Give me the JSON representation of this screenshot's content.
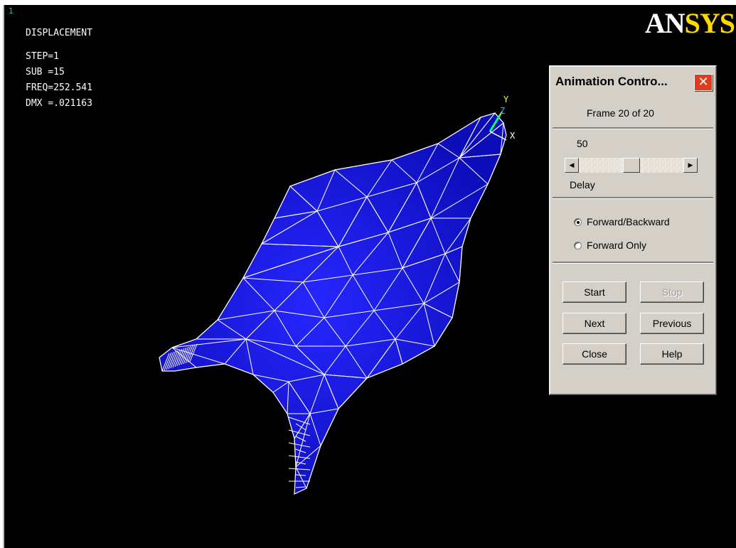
{
  "viewport": {
    "window_number": "1",
    "info_lines": [
      "DISPLACEMENT",
      "STEP=1",
      "SUB =15",
      "FREQ=252.541",
      "DMX =.021163"
    ],
    "logo_an": "AN",
    "logo_sys": "SYS",
    "triad": {
      "y": "Y",
      "z": "Z",
      "x": "X"
    },
    "colors": {
      "background": "#000000",
      "mesh_fill": "#1a1ae0",
      "mesh_lines": "#ffffff",
      "logo_accent": "#ffd800",
      "triad_y": "#ffff00",
      "triad_z": "#00c8ff",
      "triad_x": "#ffffff"
    }
  },
  "dialog": {
    "title": "Animation Contro...",
    "close_icon": "close-x-icon",
    "frame_text": "Frame 20 of 20",
    "delay_value": "50",
    "delay_label": "Delay",
    "slider": {
      "min": 0,
      "max": 100,
      "value": 50
    },
    "left_arrow_icon": "arrow-left-icon",
    "right_arrow_icon": "arrow-right-icon",
    "radio_options": [
      {
        "label": "Forward/Backward",
        "selected": true
      },
      {
        "label": "Forward Only",
        "selected": false
      }
    ],
    "buttons": {
      "start": "Start",
      "stop": "Stop",
      "next": "Next",
      "previous": "Previous",
      "close": "Close",
      "help": "Help"
    }
  }
}
